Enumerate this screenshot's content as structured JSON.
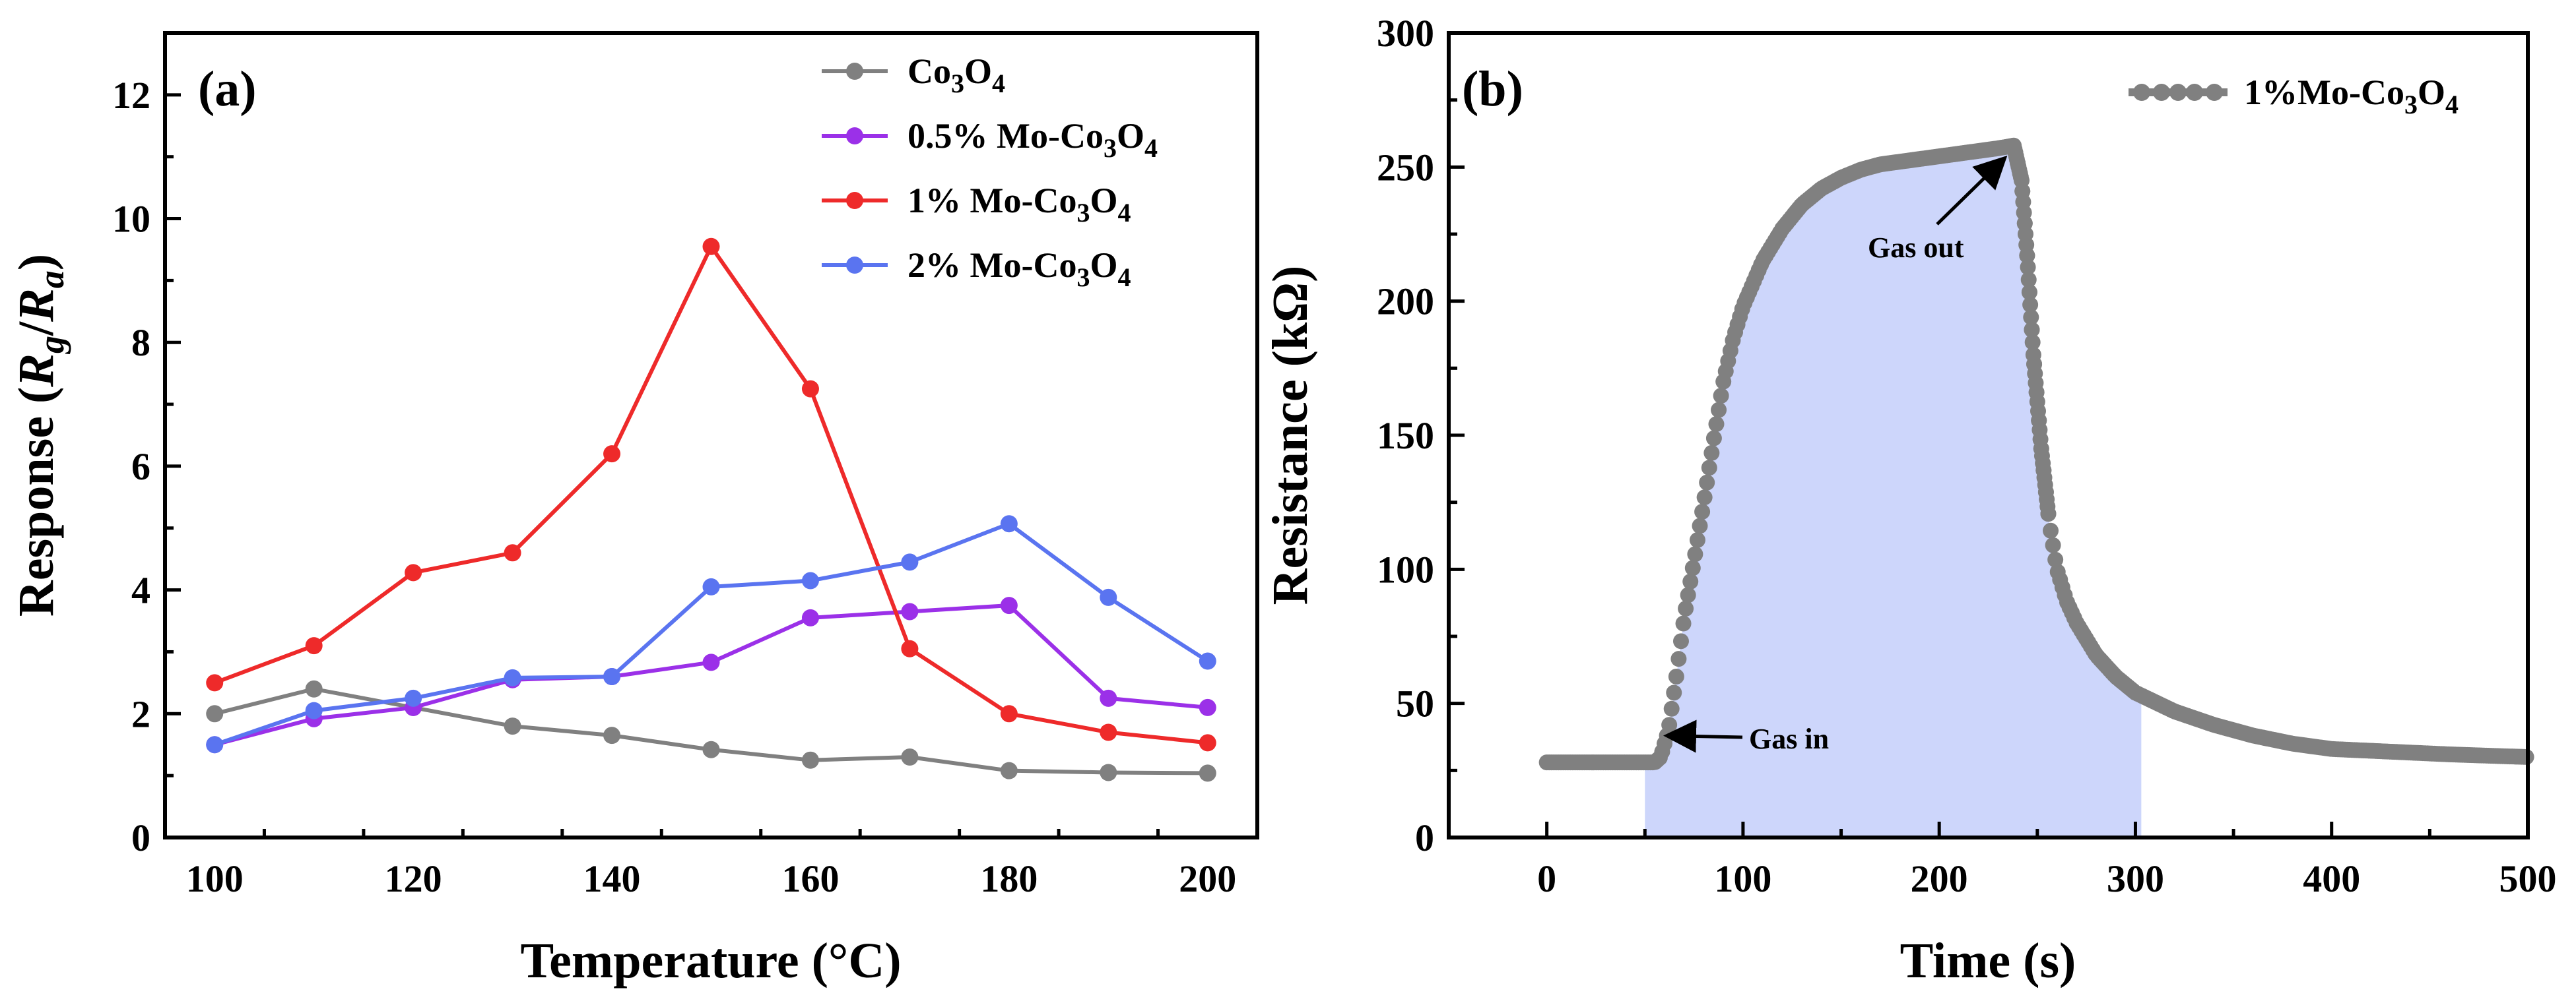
{
  "chart_data": [
    {
      "type": "line",
      "panel_label": "(a)",
      "xlabel": "Temperature (°C)",
      "ylabel": "Response (Rg/Ra)",
      "xlim": [
        95,
        205
      ],
      "ylim": [
        0,
        13
      ],
      "xticks": [
        100,
        120,
        140,
        160,
        180,
        200
      ],
      "yticks": [
        0,
        2,
        4,
        6,
        8,
        10,
        12
      ],
      "legend_position": "top-right",
      "x": [
        100,
        110,
        120,
        130,
        140,
        150,
        160,
        170,
        180,
        190,
        200
      ],
      "series": [
        {
          "name": "Co3O4",
          "color": "#808080",
          "values": [
            2.0,
            2.4,
            2.1,
            1.8,
            1.65,
            1.42,
            1.25,
            1.3,
            1.08,
            1.05,
            1.04
          ]
        },
        {
          "name": "0.5% Mo-Co3O4",
          "color": "#9b30e8",
          "values": [
            1.5,
            1.92,
            2.1,
            2.55,
            2.6,
            2.83,
            3.55,
            3.65,
            3.75,
            2.25,
            2.1
          ]
        },
        {
          "name": "1% Mo-Co3O4",
          "color": "#ee2a2a",
          "values": [
            2.5,
            3.1,
            4.28,
            4.6,
            6.2,
            9.55,
            7.25,
            3.05,
            2.0,
            1.7,
            1.53
          ]
        },
        {
          "name": "2% Mo-Co3O4",
          "color": "#5a74f0",
          "values": [
            1.5,
            2.05,
            2.25,
            2.58,
            2.6,
            4.05,
            4.15,
            4.45,
            5.07,
            3.88,
            2.85
          ]
        }
      ]
    },
    {
      "type": "scatter",
      "panel_label": "(b)",
      "xlabel": "Time (s)",
      "ylabel": "Resistance (kΩ)",
      "xlim": [
        -50,
        500
      ],
      "ylim": [
        0,
        300
      ],
      "xticks": [
        0,
        100,
        200,
        300,
        400,
        500
      ],
      "yticks": [
        0,
        50,
        100,
        150,
        200,
        250,
        300
      ],
      "legend_position": "top-right",
      "shaded_region": {
        "x_start": 50,
        "x_end": 303,
        "color": "#cdd6fb"
      },
      "series": [
        {
          "name": "1%Mo-Co3O4",
          "color": "#808080",
          "baseline": 28,
          "gas_in_time": 58,
          "gas_out_time": 238,
          "peak": 258,
          "final": 30,
          "x": [
            0,
            20,
            40,
            55,
            58,
            62,
            66,
            70,
            75,
            80,
            85,
            90,
            95,
            100,
            110,
            120,
            130,
            140,
            150,
            160,
            170,
            180,
            190,
            200,
            210,
            220,
            230,
            238,
            242,
            245,
            248,
            252,
            256,
            260,
            265,
            270,
            280,
            290,
            300,
            320,
            340,
            360,
            380,
            400,
            430,
            460,
            500
          ],
          "values": [
            28,
            28,
            28,
            28,
            30,
            40,
            60,
            82,
            103,
            125,
            148,
            170,
            186,
            198,
            215,
            227,
            236,
            242,
            246,
            249,
            251,
            252,
            253,
            254,
            255,
            256,
            257,
            258,
            245,
            215,
            180,
            145,
            118,
            100,
            88,
            80,
            68,
            60,
            54,
            47,
            42,
            38,
            35,
            33,
            32,
            31,
            30
          ]
        }
      ]
    }
  ],
  "annotations": {
    "gas_in": "Gas in",
    "gas_out": "Gas out"
  }
}
